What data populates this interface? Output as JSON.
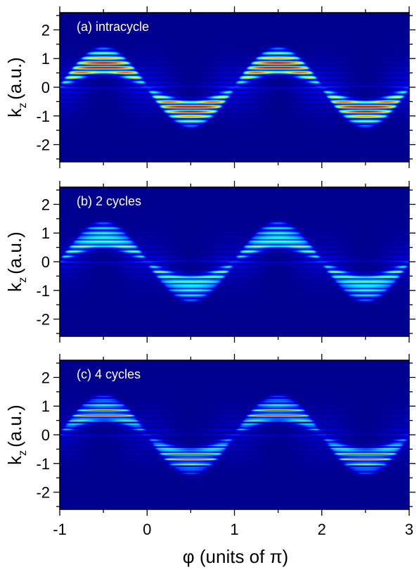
{
  "chart_data": {
    "type": "heatmap",
    "xlabel": "φ (units of π)",
    "ylabel_main": "k",
    "ylabel_sub": "z",
    "ylabel_units": "(a.u.)",
    "xlim": [
      -1,
      3
    ],
    "ylim": [
      -2.6,
      2.6
    ],
    "x_ticks": [
      -1,
      0,
      1,
      2,
      3
    ],
    "x_tick_labels": [
      "-1",
      "0",
      "1",
      "2",
      "3"
    ],
    "y_ticks": [
      -2,
      -1,
      0,
      1,
      2
    ],
    "y_tick_labels": [
      "-2",
      "-1",
      "0",
      "1",
      "2"
    ],
    "colormap": [
      "#00008f",
      "#0000ff",
      "#00ffff",
      "#ffff00",
      "#ff0000",
      "#800000"
    ],
    "background_color": "#00008f",
    "panels": [
      {
        "label": "(a) intracycle",
        "cycles": 1
      },
      {
        "label": "(b) 2 cycles",
        "cycles": 2
      },
      {
        "label": "(c) 4 cycles",
        "cycles": 4
      }
    ]
  }
}
